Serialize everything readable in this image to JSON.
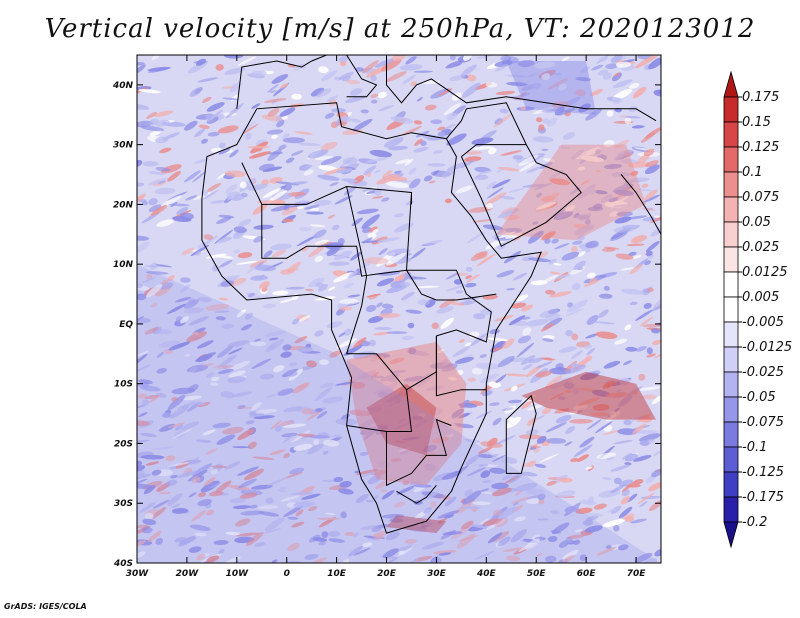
{
  "title": "Vertical velocity [m/s] at 250hPa, VT: 2020123012",
  "credit": "GrADS: IGES/COLA",
  "map": {
    "lon_range": [
      -30,
      75
    ],
    "lat_range": [
      -40,
      45
    ],
    "x_ticks": [
      "30W",
      "20W",
      "10W",
      "0",
      "10E",
      "20E",
      "30E",
      "40E",
      "50E",
      "60E",
      "70E"
    ],
    "y_ticks": [
      "40N",
      "30N",
      "20N",
      "10N",
      "EQ",
      "10S",
      "20S",
      "30S",
      "40S"
    ]
  },
  "colorbar": {
    "levels": [
      "0.175",
      "0.15",
      "0.125",
      "0.1",
      "0.075",
      "0.05",
      "0.025",
      "0.0125",
      "0.005",
      "-0.005",
      "-0.0125",
      "-0.025",
      "-0.05",
      "-0.075",
      "-0.1",
      "-0.125",
      "-0.175",
      "-0.2"
    ],
    "colors": [
      "#b01818",
      "#c72b2b",
      "#d84747",
      "#e46a6a",
      "#ee8f8f",
      "#f5b2b2",
      "#f9cfcf",
      "#fbe4e4",
      "#ffffff",
      "#ffffff",
      "#e4e4fb",
      "#cfcff7",
      "#b3b3f1",
      "#9696ea",
      "#7a7ae0",
      "#5e5ed4",
      "#3f3fc4",
      "#2a1fa8",
      "#1c0f8c"
    ]
  },
  "field_colors": {
    "ocean_bg": "#d8d8f4",
    "land_bg": "#e7e2f2",
    "sink": "#8a8ae6",
    "rise": "#e98c8c",
    "strong_rise": "#c43c3c",
    "border": "#000000"
  }
}
